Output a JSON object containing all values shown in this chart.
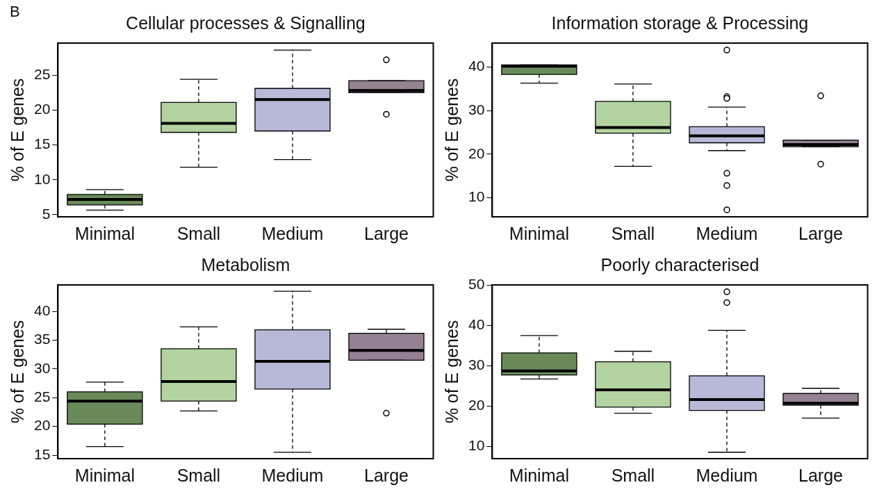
{
  "chart_data": [
    {
      "type": "box",
      "title": "Cellular processes & Signalling",
      "ylabel": "% of E genes",
      "annotations": [
        "B"
      ],
      "categories": [
        "Minimal",
        "Small",
        "Medium",
        "Large"
      ],
      "colors": [
        "#6b8a5a",
        "#b3d4a0",
        "#b8b9d8",
        "#958293"
      ],
      "ylim": [
        4.7,
        29.6
      ],
      "yticks": [
        5,
        10,
        15,
        20,
        25
      ],
      "boxes": [
        {
          "low": 5.65,
          "q1": 6.4,
          "median": 7.2,
          "q3": 7.9,
          "high": 8.6
        },
        {
          "low": 11.8,
          "q1": 16.8,
          "median": 18.1,
          "q3": 21.1,
          "high": 24.4
        },
        {
          "low": 12.9,
          "q1": 17.0,
          "median": 21.5,
          "q3": 23.1,
          "high": 28.6
        },
        {
          "low": 22.5,
          "q1": 22.5,
          "median": 22.8,
          "q3": 24.2,
          "high": 24.2,
          "outliers": [
            27.2,
            19.4
          ]
        }
      ]
    },
    {
      "type": "box",
      "title": "Information storage & Processing",
      "ylabel": "% of E genes",
      "categories": [
        "Minimal",
        "Small",
        "Medium",
        "Large"
      ],
      "colors": [
        "#6b8a5a",
        "#b3d4a0",
        "#b8b9d8",
        "#958293"
      ],
      "ylim": [
        5.6,
        45.5
      ],
      "yticks": [
        10,
        20,
        30,
        40
      ],
      "boxes": [
        {
          "low": 36.3,
          "q1": 38.3,
          "median": 40.2,
          "q3": 40.5,
          "high": 40.5
        },
        {
          "low": 17.2,
          "q1": 24.8,
          "median": 26.1,
          "q3": 32.1,
          "high": 36.1
        },
        {
          "low": 20.8,
          "q1": 22.6,
          "median": 24.2,
          "q3": 26.3,
          "high": 30.8,
          "outliers": [
            43.9,
            33.2,
            32.8,
            15.6,
            12.8,
            7.2
          ]
        },
        {
          "low": 21.7,
          "q1": 21.7,
          "median": 22.2,
          "q3": 23.2,
          "high": 23.2,
          "outliers": [
            33.4,
            17.7
          ]
        }
      ]
    },
    {
      "type": "box",
      "title": "Metabolism",
      "ylabel": "% of E genes",
      "categories": [
        "Minimal",
        "Small",
        "Medium",
        "Large"
      ],
      "colors": [
        "#6b8a5a",
        "#b3d4a0",
        "#b8b9d8",
        "#958293"
      ],
      "ylim": [
        14.4,
        44.6
      ],
      "yticks": [
        15,
        20,
        25,
        30,
        35,
        40
      ],
      "boxes": [
        {
          "low": 16.5,
          "q1": 20.4,
          "median": 24.4,
          "q3": 26.0,
          "high": 27.7
        },
        {
          "low": 22.7,
          "q1": 24.4,
          "median": 27.8,
          "q3": 33.5,
          "high": 37.3
        },
        {
          "low": 15.5,
          "q1": 26.5,
          "median": 31.3,
          "q3": 36.8,
          "high": 43.5
        },
        {
          "low": 31.5,
          "q1": 31.5,
          "median": 33.2,
          "q3": 36.2,
          "high": 36.9,
          "outliers": [
            22.3
          ]
        }
      ]
    },
    {
      "type": "box",
      "title": "Poorly characterised",
      "ylabel": "% of E genes",
      "categories": [
        "Minimal",
        "Small",
        "Medium",
        "Large"
      ],
      "colors": [
        "#6b8a5a",
        "#b3d4a0",
        "#b8b9d8",
        "#958293"
      ],
      "ylim": [
        6.9,
        50.1
      ],
      "yticks": [
        10,
        20,
        30,
        40,
        50
      ],
      "boxes": [
        {
          "low": 26.7,
          "q1": 27.7,
          "median": 28.7,
          "q3": 33.2,
          "high": 37.5
        },
        {
          "low": 18.2,
          "q1": 19.7,
          "median": 24.0,
          "q3": 31.0,
          "high": 33.6
        },
        {
          "low": 8.5,
          "q1": 18.9,
          "median": 21.6,
          "q3": 27.5,
          "high": 38.8,
          "outliers": [
            48.4,
            45.7
          ]
        },
        {
          "low": 17.0,
          "q1": 20.2,
          "median": 20.7,
          "q3": 23.1,
          "high": 24.4
        }
      ]
    }
  ]
}
